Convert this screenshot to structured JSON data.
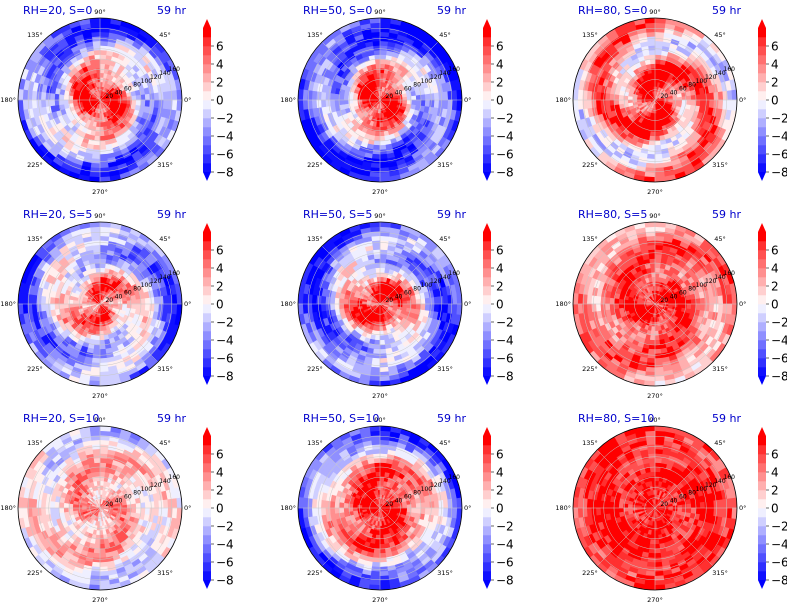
{
  "chart_data": {
    "type": "heatmap",
    "projection": "polar",
    "layout": {
      "rows": 3,
      "cols": 3
    },
    "colormap": {
      "name": "bwr",
      "low_color": "#0000ff",
      "mid_color": "#ffffff",
      "high_color": "#ff0000",
      "levels": [
        -8,
        -7,
        -6,
        -5,
        -4,
        -3,
        -2,
        -1,
        0,
        1,
        2,
        3,
        4,
        5,
        6,
        7
      ],
      "extend": "both"
    },
    "colorbar_ticks": [
      "6",
      "4",
      "2",
      "0",
      "−2",
      "−4",
      "−6",
      "−8"
    ],
    "angle_labels": [
      "90°",
      "45°",
      "0°",
      "315°",
      "270°",
      "225°",
      "180°",
      "135°"
    ],
    "radial_labels": [
      "20",
      "40",
      "60",
      "80",
      "100",
      "120",
      "140",
      "160"
    ],
    "panels": [
      {
        "title_left": "RH=20, S=0",
        "title_right": "59 hr",
        "core_value": 7,
        "ring_value": -1,
        "outer_value": -6,
        "swirl_amp": 3
      },
      {
        "title_left": "RH=50, S=0",
        "title_right": "59 hr",
        "core_value": 7,
        "ring_value": -3,
        "outer_value": -7,
        "swirl_amp": 3
      },
      {
        "title_left": "RH=80, S=0",
        "title_right": "59 hr",
        "core_value": 7,
        "ring_value": 3,
        "outer_value": 2,
        "swirl_amp": 4
      },
      {
        "title_left": "RH=20, S=5",
        "title_right": "59 hr",
        "core_value": 5,
        "ring_value": -1,
        "outer_value": -5,
        "swirl_amp": 3
      },
      {
        "title_left": "RH=50, S=5",
        "title_right": "59 hr",
        "core_value": 7,
        "ring_value": -2,
        "outer_value": -6,
        "swirl_amp": 3
      },
      {
        "title_left": "RH=80, S=5",
        "title_right": "59 hr",
        "core_value": 7,
        "ring_value": 5,
        "outer_value": 3,
        "swirl_amp": 2
      },
      {
        "title_left": "RH=20, S=10",
        "title_right": "59 hr",
        "core_value": 3,
        "ring_value": 2,
        "outer_value": -1,
        "swirl_amp": 2
      },
      {
        "title_left": "RH=50, S=10",
        "title_right": "59 hr",
        "core_value": 7,
        "ring_value": 4,
        "outer_value": -7,
        "swirl_amp": 2
      },
      {
        "title_left": "RH=80, S=10",
        "title_right": "59 hr",
        "core_value": 7,
        "ring_value": 7,
        "outer_value": 6,
        "swirl_amp": 1
      }
    ]
  }
}
